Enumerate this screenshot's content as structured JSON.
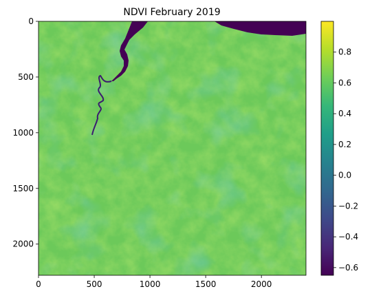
{
  "chart_data": {
    "type": "heatmap",
    "title": "NDVI February 2019",
    "xlabel": "",
    "ylabel": "",
    "xlim": [
      0,
      2400
    ],
    "ylim": [
      2280,
      0
    ],
    "x_ticks": [
      0,
      500,
      1000,
      1500,
      2000
    ],
    "y_ticks": [
      0,
      500,
      1000,
      1500,
      2000
    ],
    "colormap": "viridis",
    "colorbar": {
      "range": [
        -0.65,
        1.0
      ],
      "ticks": [
        0.8,
        0.6,
        0.4,
        0.2,
        0.0,
        -0.2,
        -0.4,
        -0.6
      ],
      "tick_labels": [
        "0.8",
        "0.6",
        "0.4",
        "0.2",
        "0.0",
        "−0.2",
        "−0.4",
        "−0.6"
      ],
      "stops": [
        "#440154",
        "#482878",
        "#3e4989",
        "#31688e",
        "#26828e",
        "#1f9e89",
        "#35b779",
        "#6ece58",
        "#b5de2b",
        "#fde725"
      ]
    },
    "grid": false,
    "legend": "colorbar-right",
    "dominant_value": 0.6,
    "features": [
      {
        "name": "river",
        "value": -0.65
      },
      {
        "name": "sea",
        "value": -0.65
      },
      {
        "name": "vegetation",
        "value": 0.65
      }
    ]
  }
}
